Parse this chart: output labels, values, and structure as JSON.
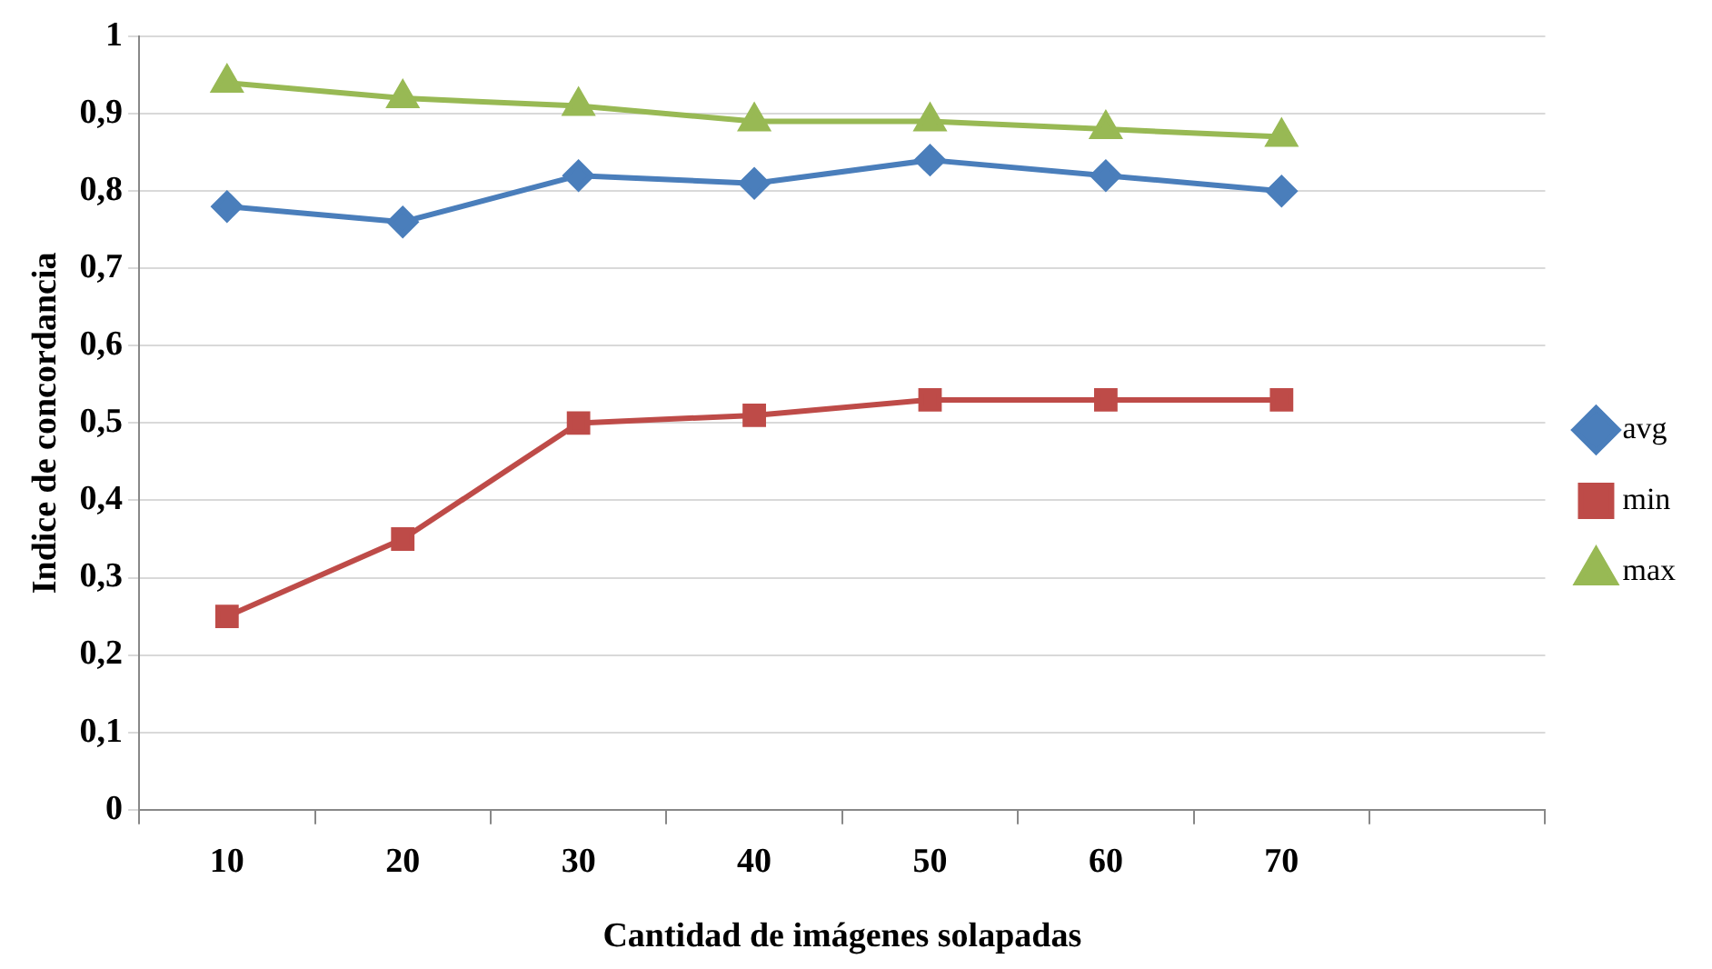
{
  "chart_data": {
    "type": "line",
    "xlabel": "Cantidad de imágenes solapadas",
    "ylabel": "Indice de concordancia",
    "categories": [
      "10",
      "20",
      "30",
      "40",
      "50",
      "60",
      "70",
      null
    ],
    "series": [
      {
        "name": "avg",
        "color": "#4a7ebb",
        "marker": "diamond",
        "values": [
          0.78,
          0.76,
          0.82,
          0.81,
          0.84,
          0.82,
          0.8,
          null
        ]
      },
      {
        "name": "min",
        "color": "#be4b48",
        "marker": "square",
        "values": [
          0.25,
          0.35,
          0.5,
          0.51,
          0.53,
          0.53,
          0.53,
          null
        ]
      },
      {
        "name": "max",
        "color": "#98b954",
        "marker": "triangle",
        "values": [
          0.94,
          0.92,
          0.91,
          0.89,
          0.89,
          0.88,
          0.87,
          null
        ]
      }
    ],
    "ylim": [
      0,
      1
    ],
    "yticks": [
      0,
      {
        "value": 0.1,
        "label": "0,1"
      },
      {
        "value": 0.2,
        "label": "0,2"
      },
      {
        "value": 0.3,
        "label": "0,3"
      },
      {
        "value": 0.4,
        "label": "0,4"
      },
      {
        "value": 0.5,
        "label": "0,5"
      },
      {
        "value": 0.6,
        "label": "0,6"
      },
      {
        "value": 0.7,
        "label": "0,7"
      },
      {
        "value": 0.8,
        "label": "0,8"
      },
      {
        "value": 0.9,
        "label": "0,9"
      },
      1
    ],
    "grid": "y",
    "legend": "right",
    "line_style": "solid"
  }
}
